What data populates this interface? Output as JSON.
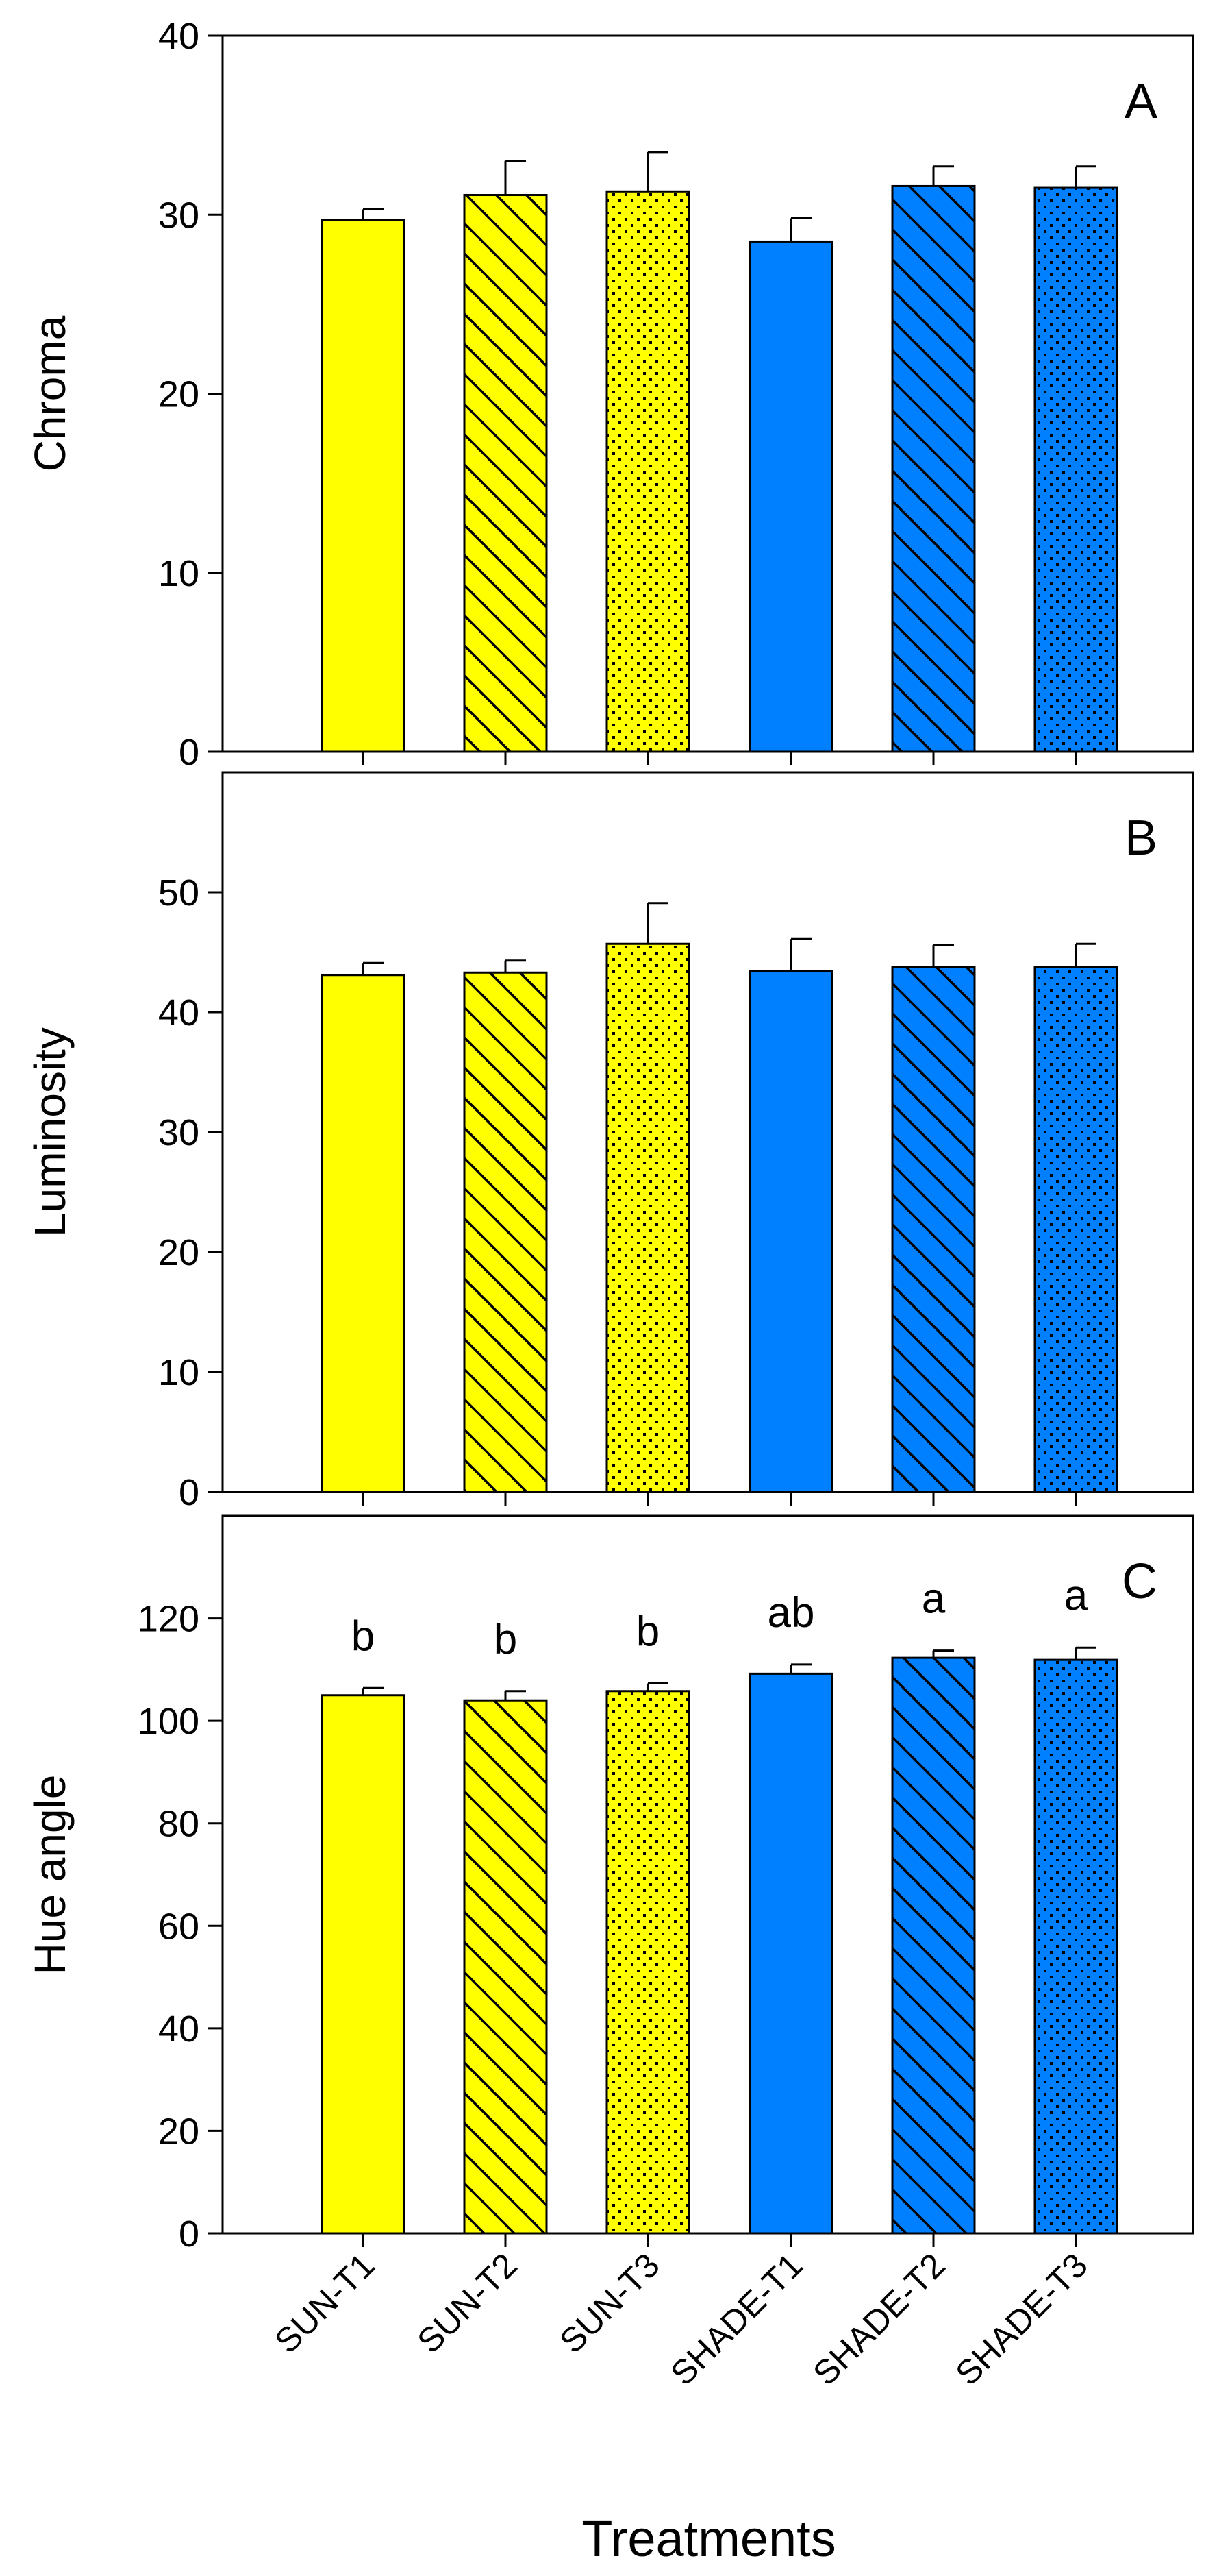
{
  "figure": {
    "xlabel": "Treatments",
    "fill_patterns": [
      "solid",
      "diagonal",
      "dotted",
      "solid",
      "diagonal",
      "dotted"
    ]
  },
  "colors": {
    "sun": "#ffff00",
    "shade": "#0080ff",
    "axis": "#000000",
    "background": "#ffffff"
  },
  "chart_data": [
    {
      "type": "bar",
      "panel_label": "A",
      "title": "",
      "xlabel": "Treatments",
      "ylabel": "Chroma",
      "categories": [
        "SUN-T1",
        "SUN-T2",
        "SUN-T3",
        "SHADE-T1",
        "SHADE-T2",
        "SHADE-T3"
      ],
      "values": [
        29.7,
        31.1,
        31.3,
        28.5,
        31.6,
        31.5
      ],
      "errors": [
        0.6,
        1.9,
        2.2,
        1.3,
        1.1,
        1.2
      ],
      "significance_letters": [
        "",
        "",
        "",
        "",
        "",
        ""
      ],
      "ylim": [
        0,
        40
      ],
      "yticks": [
        0,
        10,
        20,
        30,
        40
      ],
      "grid": false,
      "show_xticklabels": false
    },
    {
      "type": "bar",
      "panel_label": "B",
      "title": "",
      "xlabel": "Treatments",
      "ylabel": "Luminosity",
      "categories": [
        "SUN-T1",
        "SUN-T2",
        "SUN-T3",
        "SHADE-T1",
        "SHADE-T2",
        "SHADE-T3"
      ],
      "values": [
        43.1,
        43.3,
        45.7,
        43.4,
        43.8,
        43.8
      ],
      "errors": [
        1.0,
        1.0,
        3.4,
        2.7,
        1.8,
        1.9
      ],
      "significance_letters": [
        "",
        "",
        "",
        "",
        "",
        ""
      ],
      "ylim": [
        0,
        60
      ],
      "yticks": [
        0,
        10,
        20,
        30,
        40,
        50
      ],
      "grid": false,
      "show_xticklabels": false
    },
    {
      "type": "bar",
      "panel_label": "C",
      "title": "",
      "xlabel": "Treatments",
      "ylabel": "Hue angle",
      "categories": [
        "SUN-T1",
        "SUN-T2",
        "SUN-T3",
        "SHADE-T1",
        "SHADE-T2",
        "SHADE-T3"
      ],
      "values": [
        105.0,
        104.0,
        105.8,
        109.2,
        112.3,
        111.9
      ],
      "errors": [
        1.4,
        1.8,
        1.5,
        1.8,
        1.4,
        2.4
      ],
      "significance_letters": [
        "b",
        "b",
        "b",
        "ab",
        "a",
        "a"
      ],
      "ylim": [
        0,
        140
      ],
      "yticks": [
        0,
        20,
        40,
        60,
        80,
        100,
        120
      ],
      "grid": false,
      "show_xticklabels": true
    }
  ]
}
